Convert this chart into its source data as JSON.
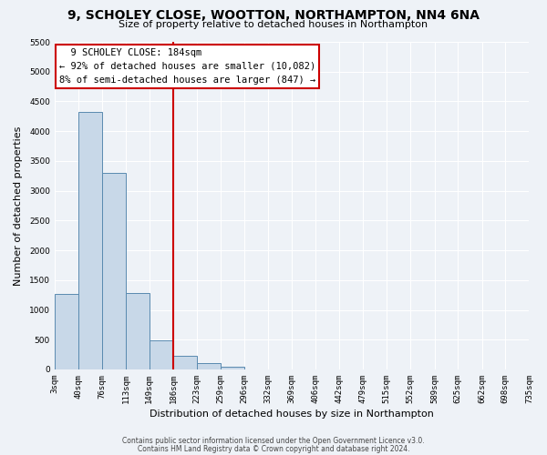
{
  "title": "9, SCHOLEY CLOSE, WOOTTON, NORTHAMPTON, NN4 6NA",
  "subtitle": "Size of property relative to detached houses in Northampton",
  "xlabel": "Distribution of detached houses by size in Northampton",
  "ylabel": "Number of detached properties",
  "bar_color": "#c8d8e8",
  "bar_edge_color": "#5a8ab0",
  "background_color": "#eef2f7",
  "grid_color": "#ffffff",
  "annotation_box_color": "#ffffff",
  "annotation_box_edge_color": "#cc0000",
  "vline_color": "#cc0000",
  "vline_x": 186,
  "bin_edges": [
    3,
    40,
    76,
    113,
    149,
    186,
    223,
    259,
    296,
    332,
    369,
    406,
    442,
    479,
    515,
    552,
    589,
    625,
    662,
    698,
    735
  ],
  "bin_labels": [
    "3sqm",
    "40sqm",
    "76sqm",
    "113sqm",
    "149sqm",
    "186sqm",
    "223sqm",
    "259sqm",
    "296sqm",
    "332sqm",
    "369sqm",
    "406sqm",
    "442sqm",
    "479sqm",
    "515sqm",
    "552sqm",
    "589sqm",
    "625sqm",
    "662sqm",
    "698sqm",
    "735sqm"
  ],
  "bar_heights": [
    1270,
    4330,
    3300,
    1290,
    490,
    230,
    100,
    50,
    0,
    0,
    0,
    0,
    0,
    0,
    0,
    0,
    0,
    0,
    0,
    0
  ],
  "ylim": [
    0,
    5500
  ],
  "yticks": [
    0,
    500,
    1000,
    1500,
    2000,
    2500,
    3000,
    3500,
    4000,
    4500,
    5000,
    5500
  ],
  "annotation_title": "9 SCHOLEY CLOSE: 184sqm",
  "annotation_line1": "← 92% of detached houses are smaller (10,082)",
  "annotation_line2": "8% of semi-detached houses are larger (847) →",
  "footer_line1": "Contains HM Land Registry data © Crown copyright and database right 2024.",
  "footer_line2": "Contains public sector information licensed under the Open Government Licence v3.0.",
  "title_fontsize": 10,
  "subtitle_fontsize": 8,
  "xlabel_fontsize": 8,
  "ylabel_fontsize": 8,
  "tick_fontsize": 6.5,
  "annotation_fontsize": 7.5,
  "footer_fontsize": 5.5
}
